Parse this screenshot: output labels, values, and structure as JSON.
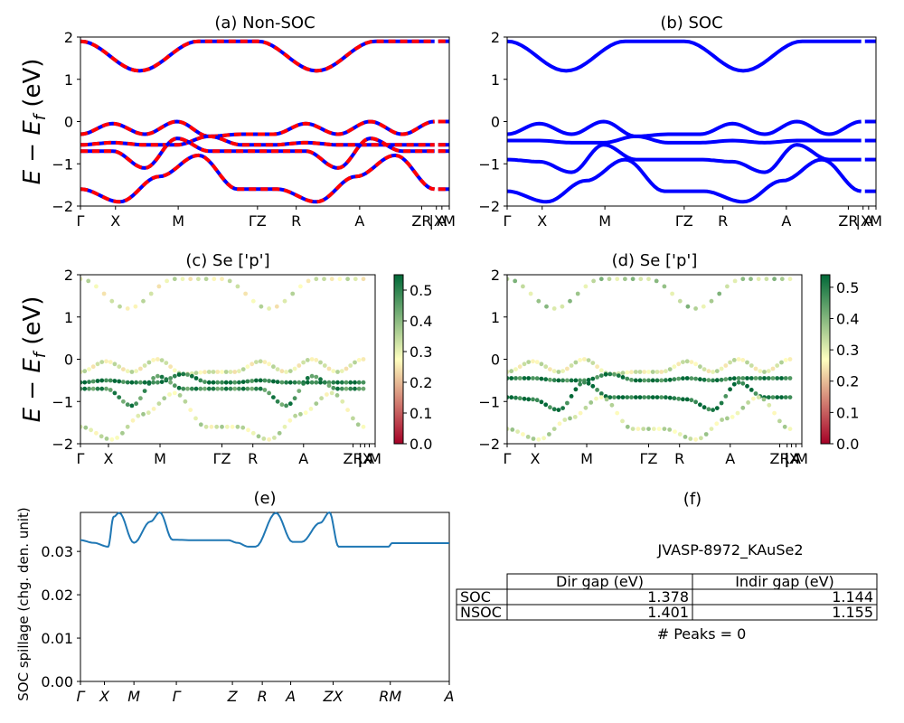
{
  "colors": {
    "band_blue": "#0000ff",
    "band_red": "#ff0000",
    "spillage": "#1f77b4",
    "cmap_low": "#a50026",
    "cmap_mid": "#ffffbf",
    "cmap_high": "#006837"
  },
  "bands_ylabel": "E − E",
  "bands_ylabel_sub": "f",
  "bands_ylabel_unit": "(eV)",
  "chart_data": [
    {
      "id": "a",
      "type": "line",
      "title": "(a) Non-SOC",
      "ylim": [
        -2,
        2
      ],
      "yticks": [
        "2",
        "1",
        "0",
        "−1",
        "−2"
      ],
      "kpath": [
        "Γ",
        "X",
        "M",
        "ΓZ",
        "R",
        "A",
        "ZR",
        "|X",
        "A",
        "M"
      ],
      "series": [
        {
          "values": [
            -0.3,
            -0.05,
            -0.3,
            0.0,
            -0.35,
            -0.3,
            -0.3,
            -0.05,
            -0.3,
            0.0,
            -0.3,
            0.0
          ]
        },
        {
          "values": [
            -0.55,
            -0.5,
            -0.55,
            -0.55,
            -0.35,
            -0.55,
            -0.55,
            -0.5,
            -0.55,
            -0.55,
            -0.55,
            -0.55
          ]
        },
        {
          "values": [
            -0.7,
            -0.7,
            -1.1,
            -0.4,
            -0.7,
            -0.7,
            -0.7,
            -0.7,
            -1.1,
            -0.4,
            -0.7,
            -0.7
          ]
        },
        {
          "values": [
            -1.6,
            -1.9,
            -1.3,
            -0.8,
            -1.6,
            -1.6,
            -1.9,
            -1.3,
            -0.8,
            -1.6
          ]
        },
        {
          "values": [
            1.9,
            1.2,
            1.9,
            1.9,
            1.2,
            1.9,
            1.9
          ]
        }
      ]
    },
    {
      "id": "b",
      "type": "line",
      "title": "(b) SOC",
      "ylim": [
        -2,
        2
      ],
      "yticks": [
        "2",
        "1",
        "0",
        "−1",
        "−2"
      ],
      "kpath": [
        "Γ",
        "X",
        "M",
        "ΓZ",
        "R",
        "A",
        "ZR",
        "|X",
        "A",
        "M"
      ],
      "series": [
        {
          "values": [
            -0.3,
            -0.05,
            -0.3,
            0.0,
            -0.35,
            -0.3,
            -0.3,
            -0.05,
            -0.3,
            0.0,
            -0.3,
            0.0
          ]
        },
        {
          "values": [
            -0.45,
            -0.45,
            -0.5,
            -0.5,
            -0.35,
            -0.5,
            -0.5,
            -0.45,
            -0.5,
            -0.45,
            -0.45,
            -0.45
          ]
        },
        {
          "values": [
            -0.9,
            -0.95,
            -1.2,
            -0.55,
            -0.9,
            -0.9,
            -0.9,
            -0.95,
            -1.2,
            -0.55,
            -0.9,
            -0.9
          ]
        },
        {
          "values": [
            -1.65,
            -1.9,
            -1.4,
            -0.9,
            -1.65,
            -1.65,
            -1.9,
            -1.4,
            -0.9,
            -1.65
          ]
        },
        {
          "values": [
            1.9,
            1.2,
            1.9,
            1.9,
            1.2,
            1.9,
            1.9
          ]
        }
      ]
    },
    {
      "id": "c",
      "type": "scatter",
      "title": "(c)  Se ['p']",
      "ylim": [
        -2,
        2
      ],
      "yticks": [
        "2",
        "1",
        "0",
        "−1",
        "−2"
      ],
      "kpath": [
        "Γ",
        "X",
        "M",
        "ΓZ",
        "R",
        "A",
        "ZR",
        "|",
        "|X",
        "A",
        "M"
      ],
      "colorbar": {
        "ticks": [
          "0.5",
          "0.4",
          "0.3",
          "0.2",
          "0.1",
          "0.0"
        ],
        "range": [
          0,
          0.55
        ]
      },
      "series": [
        {
          "values": [
            -0.3,
            -0.05,
            -0.3,
            0.0,
            -0.35,
            -0.3,
            -0.3,
            -0.05,
            -0.3,
            0.0,
            -0.3,
            0.0
          ],
          "weight": 0.3
        },
        {
          "values": [
            -0.55,
            -0.5,
            -0.55,
            -0.55,
            -0.35,
            -0.55,
            -0.55,
            -0.5,
            -0.55,
            -0.55,
            -0.55,
            -0.55
          ],
          "weight": 0.52
        },
        {
          "values": [
            -0.7,
            -0.7,
            -1.1,
            -0.4,
            -0.7,
            -0.7,
            -0.7,
            -0.7,
            -1.1,
            -0.4,
            -0.7,
            -0.7
          ],
          "weight": 0.48
        },
        {
          "values": [
            -1.6,
            -1.9,
            -1.3,
            -0.8,
            -1.6,
            -1.6,
            -1.9,
            -1.3,
            -0.8,
            -1.6
          ],
          "weight": 0.32
        },
        {
          "values": [
            1.9,
            1.2,
            1.9,
            1.9,
            1.2,
            1.9,
            1.9
          ],
          "weight": 0.3
        }
      ]
    },
    {
      "id": "d",
      "type": "scatter",
      "title": "(d) Se ['p']",
      "ylim": [
        -2,
        2
      ],
      "yticks": [
        "2",
        "1",
        "0",
        "−1",
        "−2"
      ],
      "kpath": [
        "Γ",
        "X",
        "M",
        "ΓZ",
        "R",
        "A",
        "ZR",
        "|",
        "|X",
        "A",
        "M"
      ],
      "colorbar": {
        "ticks": [
          "0.5",
          "0.4",
          "0.3",
          "0.2",
          "0.1",
          "0.0"
        ],
        "range": [
          0,
          0.54
        ]
      },
      "series": [
        {
          "values": [
            -0.3,
            -0.05,
            -0.3,
            0.0,
            -0.35,
            -0.3,
            -0.3,
            -0.05,
            -0.3,
            0.0,
            -0.3,
            0.0
          ],
          "weight": 0.3
        },
        {
          "values": [
            -0.45,
            -0.45,
            -0.5,
            -0.5,
            -0.35,
            -0.5,
            -0.5,
            -0.45,
            -0.5,
            -0.45,
            -0.45,
            -0.45
          ],
          "weight": 0.5
        },
        {
          "values": [
            -0.9,
            -0.95,
            -1.2,
            -0.55,
            -0.9,
            -0.9,
            -0.9,
            -0.95,
            -1.2,
            -0.55,
            -0.9,
            -0.9
          ],
          "weight": 0.52
        },
        {
          "values": [
            -1.65,
            -1.9,
            -1.4,
            -0.9,
            -1.65,
            -1.65,
            -1.9,
            -1.4,
            -0.9,
            -1.65
          ],
          "weight": 0.32
        },
        {
          "values": [
            1.9,
            1.2,
            1.9,
            1.9,
            1.2,
            1.9,
            1.9
          ],
          "weight": 0.35
        }
      ]
    },
    {
      "id": "e",
      "type": "line",
      "title": "(e)",
      "ylabel": "SOC spillage (chg. den. unit)",
      "ylim": [
        0,
        0.039
      ],
      "yticks": [
        "0.03",
        "0.02",
        "0.01",
        "0.00"
      ],
      "kpath": [
        "Γ",
        "X",
        "M",
        "Γ",
        "Z",
        "R",
        "A",
        "ZX",
        "RM",
        "A"
      ],
      "series": [
        {
          "x": [
            0,
            0.035,
            0.075,
            0.09,
            0.105,
            0.145,
            0.19,
            0.215,
            0.25,
            0.3,
            0.385,
            0.4,
            0.425,
            0.455,
            0.475,
            0.53,
            0.575,
            0.6,
            0.65,
            0.675,
            0.7,
            0.755,
            0.77,
            0.83,
            0.835,
            0.845,
            0.85,
            0.92,
            1.0
          ],
          "values": [
            0.0326,
            0.032,
            0.0311,
            0.038,
            0.0389,
            0.032,
            0.0369,
            0.039,
            0.0327,
            0.0326,
            0.0326,
            0.0326,
            0.032,
            0.0311,
            0.0311,
            0.0389,
            0.0322,
            0.0322,
            0.0366,
            0.039,
            0.0311,
            0.0311,
            0.0311,
            0.0311,
            0.0311,
            0.0319,
            0.0319,
            0.0319,
            0.0319
          ]
        }
      ]
    }
  ],
  "panel_f": {
    "title": "(f)",
    "jid": "JVASP-8972_KAuSe2",
    "columns": [
      "",
      "Dir gap (eV)",
      "Indir gap (eV)"
    ],
    "rows": [
      [
        "SOC",
        "1.378",
        "1.144"
      ],
      [
        "NSOC",
        "1.401",
        "1.155"
      ]
    ],
    "peaks": "# Peaks = 0"
  }
}
